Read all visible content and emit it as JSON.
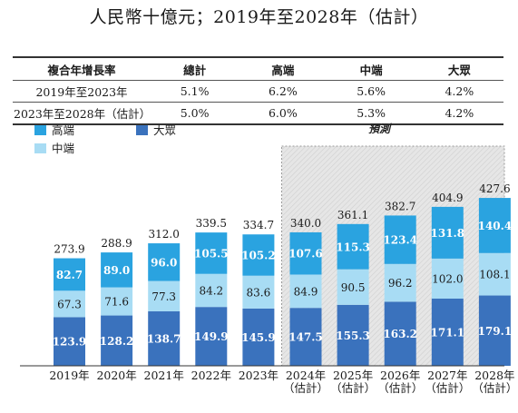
{
  "title": "人民幣十億元；2019年至2028年（估計）",
  "cagr_table": {
    "headers": [
      "複合年增長率",
      "總計",
      "高端",
      "中端",
      "大眾"
    ],
    "rows": [
      [
        "2019年至2023年",
        "5.1%",
        "6.2%",
        "5.6%",
        "4.2%"
      ],
      [
        "2023年至2028年（估計）",
        "5.0%",
        "6.0%",
        "5.3%",
        "4.2%"
      ]
    ]
  },
  "forecast_label": "預測",
  "colors": {
    "high": "#2aa3e0",
    "mid": "#a8dcf4",
    "mass": "#3a72bd",
    "forecast_bg": "#e6e6e6"
  },
  "chart_data": {
    "type": "bar",
    "stacked": true,
    "categories": [
      "2019年",
      "2020年",
      "2021年",
      "2022年",
      "2023年",
      "2024年\n（估計）",
      "2025年\n（估計）",
      "2026年\n（估計）",
      "2027年\n（估計）",
      "2028年\n（估計）"
    ],
    "series": [
      {
        "name": "大眾",
        "key": "mass",
        "values": [
          123.9,
          128.2,
          138.7,
          149.9,
          145.9,
          147.5,
          155.3,
          163.2,
          171.1,
          179.1
        ]
      },
      {
        "name": "中端",
        "key": "mid",
        "values": [
          67.3,
          71.6,
          77.3,
          84.2,
          83.6,
          84.9,
          90.5,
          96.2,
          102.0,
          108.1
        ]
      },
      {
        "name": "高端",
        "key": "high",
        "values": [
          82.7,
          89.0,
          96.0,
          105.5,
          105.2,
          107.6,
          115.3,
          123.4,
          131.8,
          140.4
        ]
      }
    ],
    "totals": [
      273.9,
      288.9,
      312.0,
      339.5,
      334.7,
      340.0,
      361.1,
      382.7,
      404.9,
      427.6
    ],
    "legend": [
      {
        "name": "高端",
        "key": "high"
      },
      {
        "name": "大眾",
        "key": "mass"
      },
      {
        "name": "中端",
        "key": "mid"
      }
    ],
    "forecast_start_index": 5
  }
}
